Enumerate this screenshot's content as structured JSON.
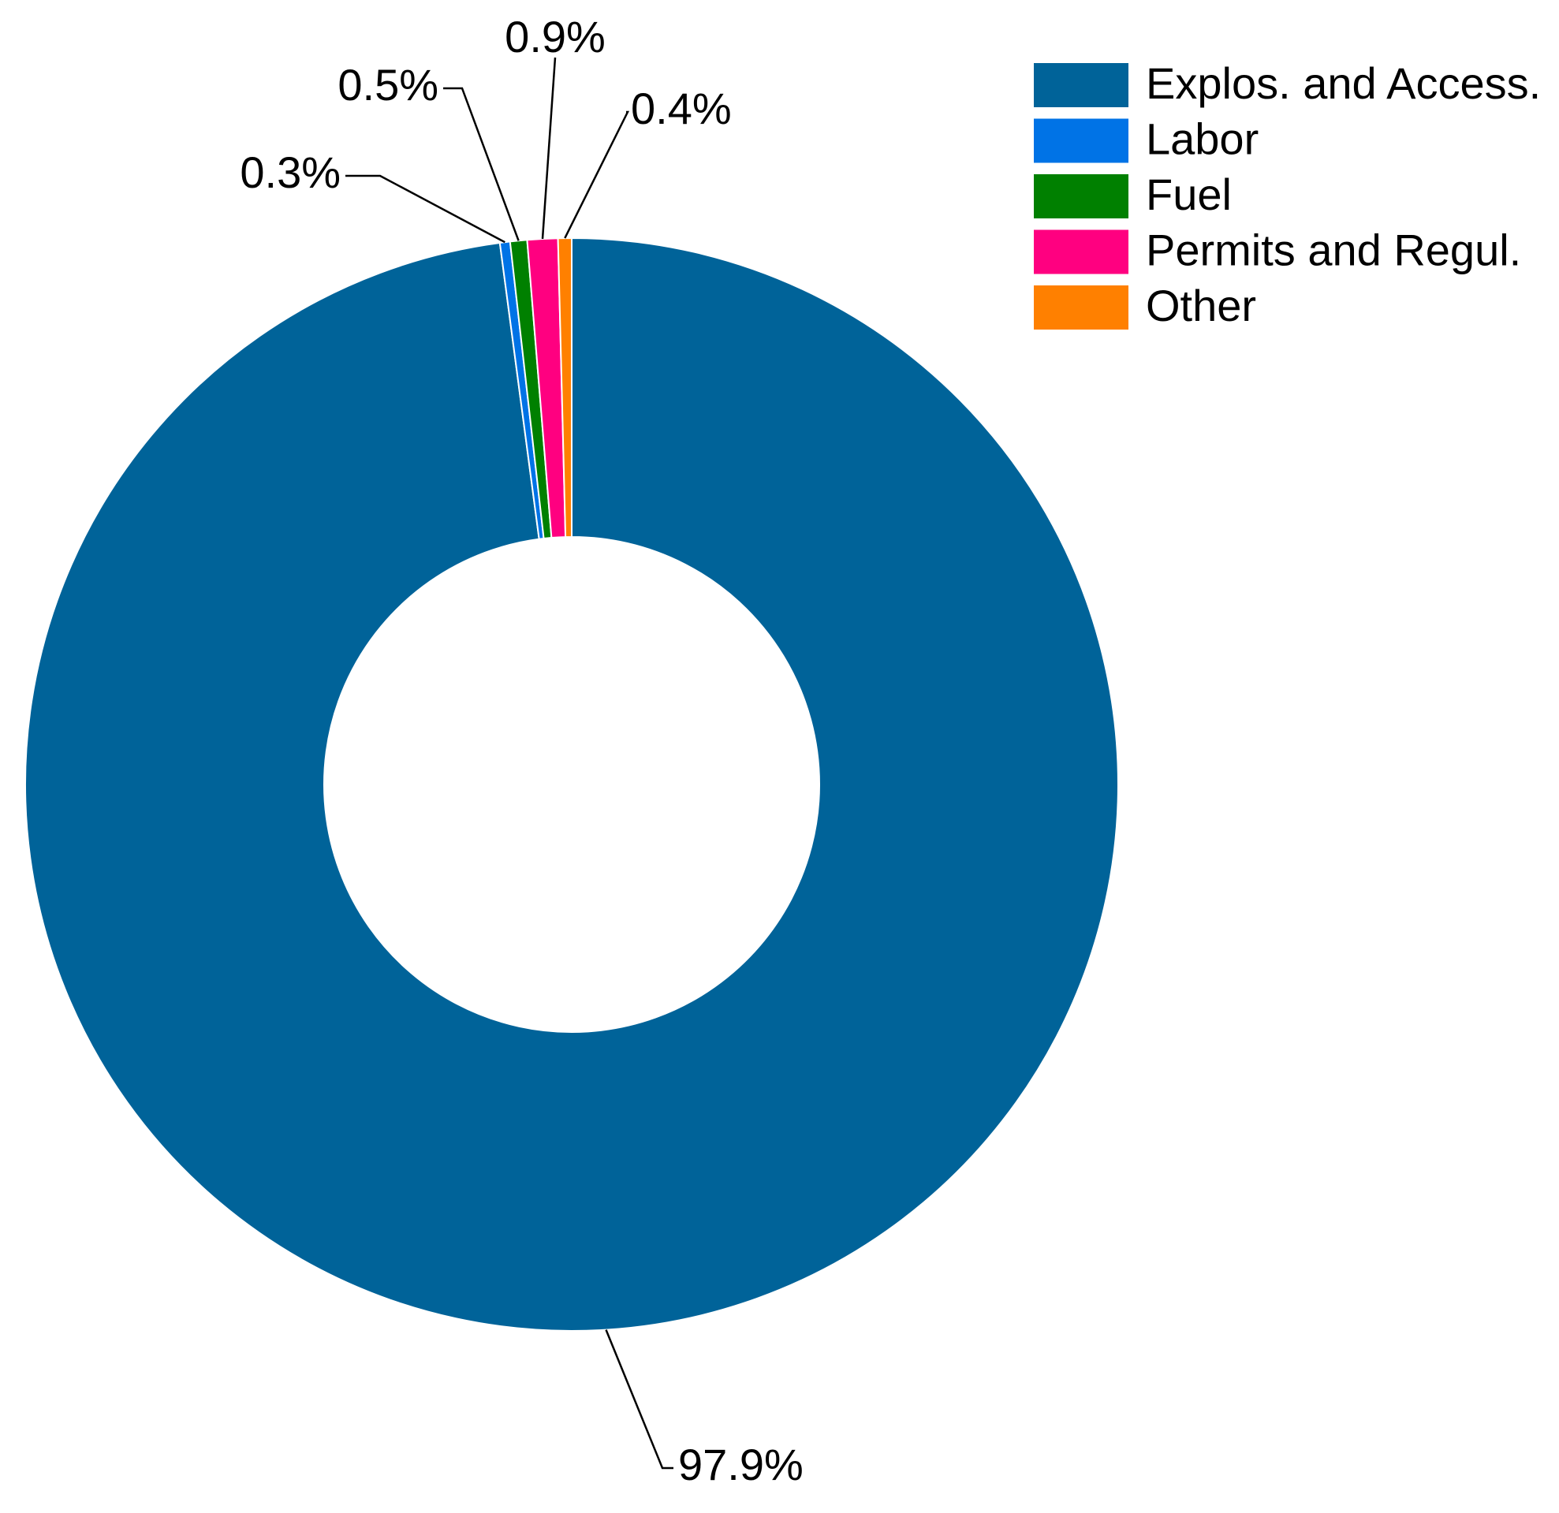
{
  "chart_data": {
    "type": "donut",
    "categories": [
      "Explos. and Access.",
      "Labor",
      "Fuel",
      "Permits and Regul.",
      "Other"
    ],
    "values": [
      97.9,
      0.3,
      0.5,
      0.9,
      0.4
    ],
    "value_labels": [
      "97.9%",
      "0.3%",
      "0.5%",
      "0.9%",
      "0.4%"
    ],
    "colors": [
      "#006399",
      "#0073e6",
      "#008000",
      "#ff0080",
      "#ff8000"
    ],
    "legend": "top-right"
  }
}
